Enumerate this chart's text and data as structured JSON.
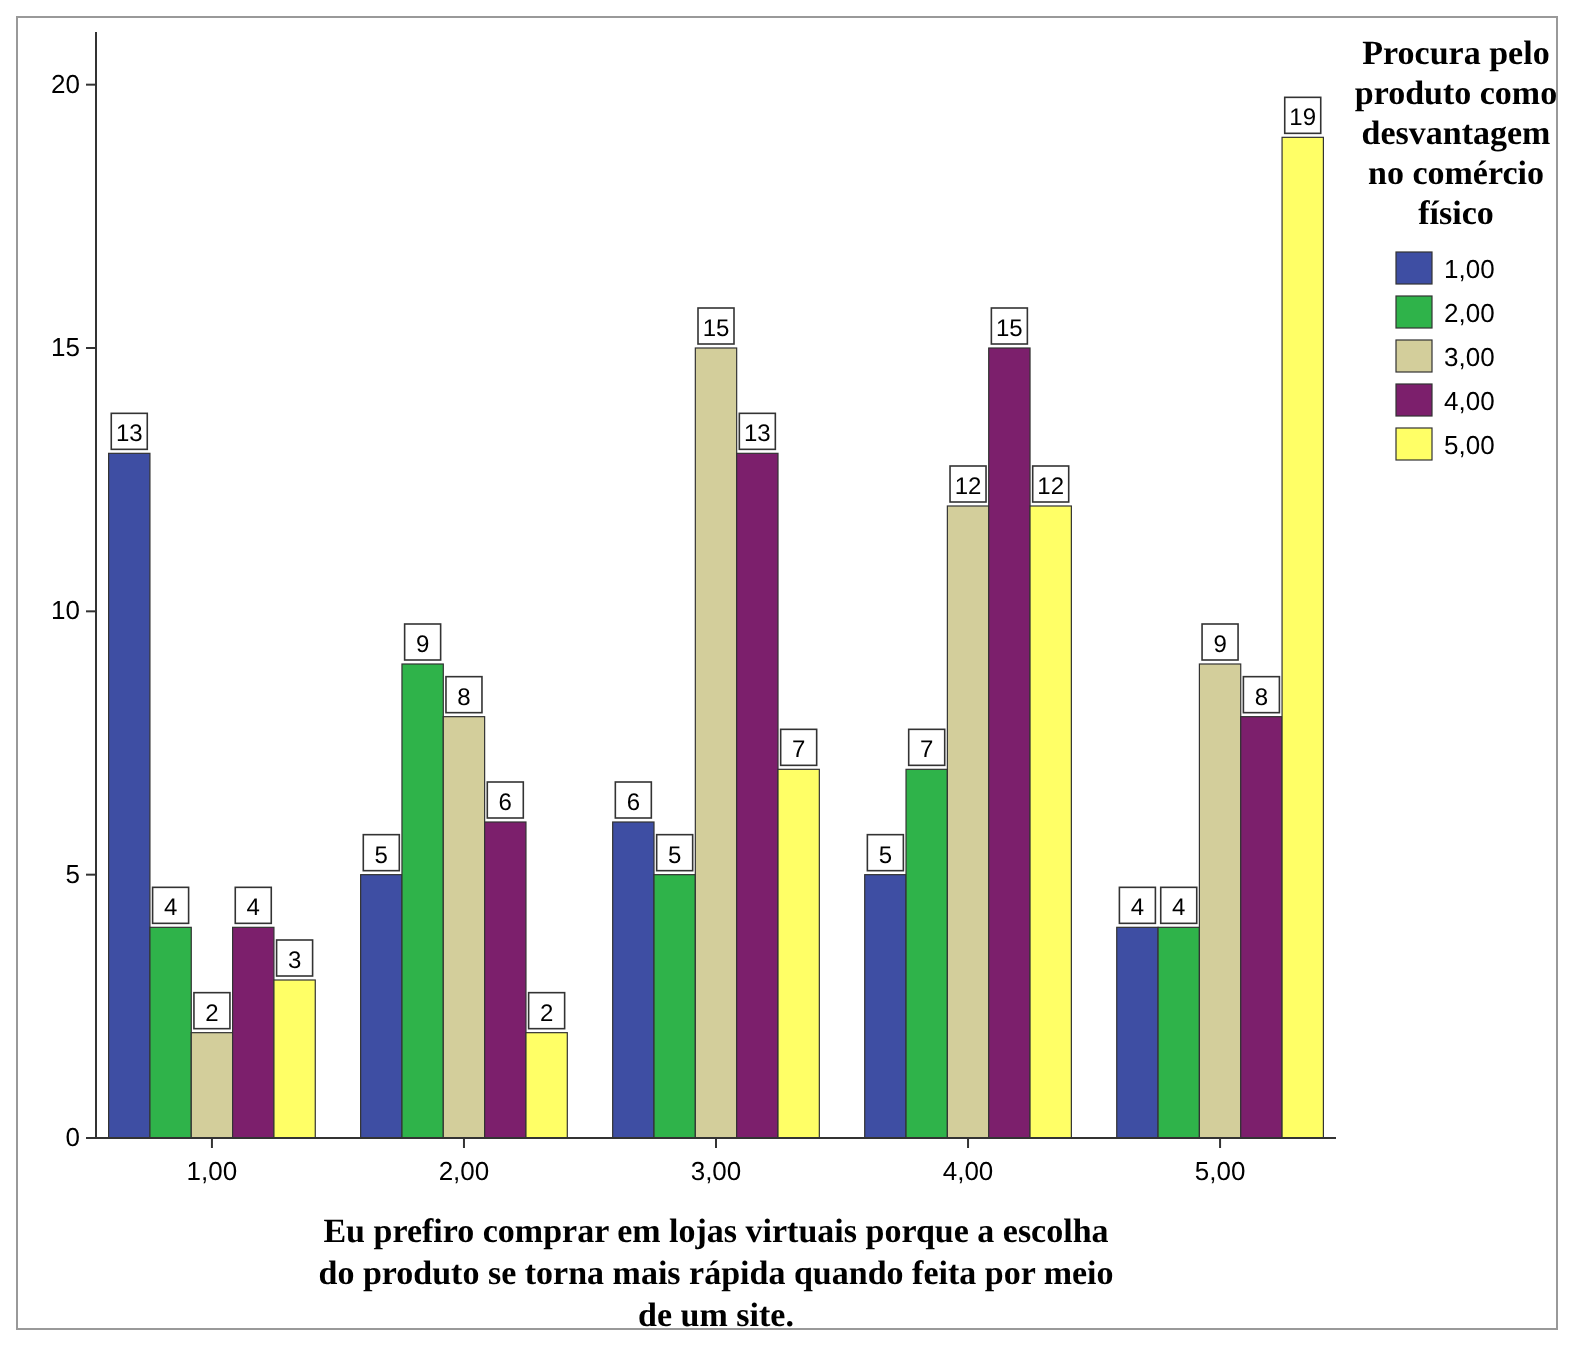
{
  "chart_data": {
    "type": "bar",
    "xlabel": "Eu prefiro comprar em lojas virtuais porque a escolha do produto se torna mais rápida quando feita por meio de um site.",
    "legend_title": "Procura pelo produto como desvantagem no comércio físico",
    "categories": [
      "1,00",
      "2,00",
      "3,00",
      "4,00",
      "5,00"
    ],
    "series": [
      {
        "name": "1,00",
        "color": "#3e4ea3",
        "values": [
          13,
          5,
          6,
          5,
          4
        ]
      },
      {
        "name": "2,00",
        "color": "#2fb34a",
        "values": [
          4,
          9,
          5,
          7,
          4
        ]
      },
      {
        "name": "3,00",
        "color": "#d3ce9b",
        "values": [
          2,
          8,
          15,
          12,
          9
        ]
      },
      {
        "name": "4,00",
        "color": "#7c1f6c",
        "values": [
          4,
          6,
          13,
          15,
          8
        ]
      },
      {
        "name": "5,00",
        "color": "#ffff66",
        "values": [
          3,
          2,
          7,
          12,
          19
        ]
      }
    ],
    "ylim": [
      0,
      21
    ],
    "yticks": [
      0,
      5,
      10,
      15,
      20
    ],
    "grid": false,
    "legend": "right",
    "data_labels": true
  }
}
